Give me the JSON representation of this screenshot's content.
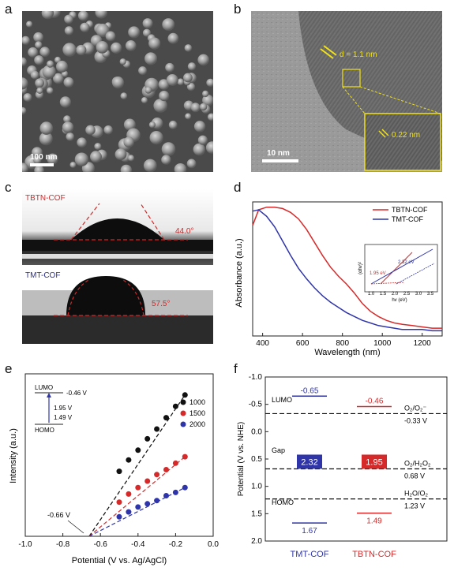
{
  "panel_labels": {
    "a": "a",
    "b": "b",
    "c": "c",
    "d": "d",
    "e": "e",
    "f": "f"
  },
  "panel_a": {
    "scale_bar": "100 nm"
  },
  "panel_b": {
    "scale_bar": "10 nm",
    "d_spacing": "d = 1.1 nm",
    "inset_spacing": "0.22 nm"
  },
  "panel_c": {
    "top_label": "TBTN-COF",
    "top_angle": "44.0°",
    "bottom_label": "TMT-COF",
    "bottom_angle": "57.5°",
    "top_color": "#cc2b2b",
    "bottom_color": "#2b2f8f"
  },
  "colors": {
    "red": "#d62a2a",
    "blue": "#2f35a8",
    "black": "#111111"
  },
  "chart_data": [
    {
      "panel": "d",
      "type": "line",
      "xlabel": "Wavelength (nm)",
      "ylabel": "Absorbance (a.u.)",
      "xlim": [
        350,
        1300
      ],
      "xticks": [
        "400",
        "600",
        "800",
        "1000",
        "1200"
      ],
      "series": [
        {
          "name": "TBTN-COF",
          "color": "#d62a2a",
          "x": [
            350,
            380,
            420,
            460,
            500,
            540,
            580,
            620,
            660,
            700,
            740,
            780,
            820,
            860,
            900,
            940,
            980,
            1020,
            1060,
            1100,
            1150,
            1200,
            1250,
            1300
          ],
          "y": [
            0.85,
            0.97,
            0.99,
            0.99,
            0.98,
            0.95,
            0.9,
            0.82,
            0.72,
            0.62,
            0.53,
            0.46,
            0.4,
            0.33,
            0.25,
            0.19,
            0.15,
            0.12,
            0.1,
            0.09,
            0.08,
            0.07,
            0.06,
            0.06
          ]
        },
        {
          "name": "TMT-COF",
          "color": "#2f35a8",
          "x": [
            350,
            380,
            420,
            460,
            500,
            540,
            580,
            620,
            660,
            700,
            740,
            780,
            820,
            860,
            900,
            940,
            980,
            1020,
            1060,
            1100,
            1150,
            1200,
            1250,
            1300
          ],
          "y": [
            0.96,
            0.97,
            0.92,
            0.84,
            0.73,
            0.62,
            0.52,
            0.44,
            0.37,
            0.31,
            0.26,
            0.22,
            0.18,
            0.15,
            0.12,
            0.1,
            0.08,
            0.07,
            0.06,
            0.05,
            0.05,
            0.05,
            0.04,
            0.04
          ]
        }
      ],
      "legend": "top-right",
      "inset": {
        "xlabel": "hv (eV)",
        "ylabel": "(αhv)²",
        "xticks": [
          "1.0",
          "1.5",
          "2.0",
          "2.5",
          "3.0",
          "3.5"
        ],
        "annotations": [
          "2.32 eV",
          "1.95 eV"
        ]
      }
    },
    {
      "panel": "e",
      "type": "scatter",
      "xlabel": "Potential (V vs. Ag/AgCl)",
      "ylabel": "Intensity (a.u.)",
      "xlim": [
        -1.0,
        0.0
      ],
      "xticks": [
        "-1.0",
        "-0.8",
        "-0.6",
        "-0.4",
        "-0.2",
        "0.0"
      ],
      "intercept_label": "-0.66 V",
      "series": [
        {
          "name": "1000",
          "color": "#111111",
          "x": [
            -0.5,
            -0.45,
            -0.4,
            -0.35,
            -0.3,
            -0.25,
            -0.2,
            -0.15
          ],
          "y": [
            0.4,
            0.47,
            0.53,
            0.6,
            0.66,
            0.73,
            0.8,
            0.87
          ]
        },
        {
          "name": "1500",
          "color": "#d62a2a",
          "x": [
            -0.5,
            -0.45,
            -0.4,
            -0.35,
            -0.3,
            -0.25,
            -0.2,
            -0.15
          ],
          "y": [
            0.21,
            0.26,
            0.3,
            0.34,
            0.38,
            0.41,
            0.45,
            0.49
          ]
        },
        {
          "name": "2000",
          "color": "#2f35a8",
          "x": [
            -0.5,
            -0.45,
            -0.4,
            -0.35,
            -0.3,
            -0.25,
            -0.2,
            -0.15
          ],
          "y": [
            0.12,
            0.15,
            0.18,
            0.2,
            0.22,
            0.25,
            0.27,
            0.3
          ]
        }
      ],
      "band_inset": {
        "lumo": "LUMO",
        "lumo_value": "-0.46 V",
        "gap": "1.95 V",
        "homo": "HOMO",
        "homo_value": "1.49 V"
      }
    },
    {
      "panel": "f",
      "type": "band-diagram",
      "ylabel": "Potential (V vs. NHE)",
      "ylim": [
        -1.0,
        2.0
      ],
      "yticks": [
        "-1.0",
        "-0.5",
        "0.0",
        "0.5",
        "1.0",
        "1.5",
        "2.0"
      ],
      "categories": [
        "TMT-COF",
        "TBTN-COF"
      ],
      "row_labels": {
        "lumo": "LUMO",
        "gap": "Gap",
        "homo": "HOMO"
      },
      "levels": [
        {
          "name": "TMT-COF",
          "color": "#2f35a8",
          "lumo": -0.65,
          "lumo_label": "-0.65",
          "homo": 1.67,
          "homo_label": "1.67",
          "gap": "2.32"
        },
        {
          "name": "TBTN-COF",
          "color": "#d62a2a",
          "lumo": -0.46,
          "lumo_label": "-0.46",
          "homo": 1.49,
          "homo_label": "1.49",
          "gap": "1.95"
        }
      ],
      "reference_lines": [
        {
          "value": -0.33,
          "label_top": "O₂/O₂⁻",
          "label_value": "-0.33 V"
        },
        {
          "value": 0.68,
          "label_top": "O₂/H₂O₂",
          "label_value": "0.68 V"
        },
        {
          "value": 1.23,
          "label_top": "H₂O/O₂",
          "label_value": "1.23 V"
        }
      ]
    }
  ]
}
